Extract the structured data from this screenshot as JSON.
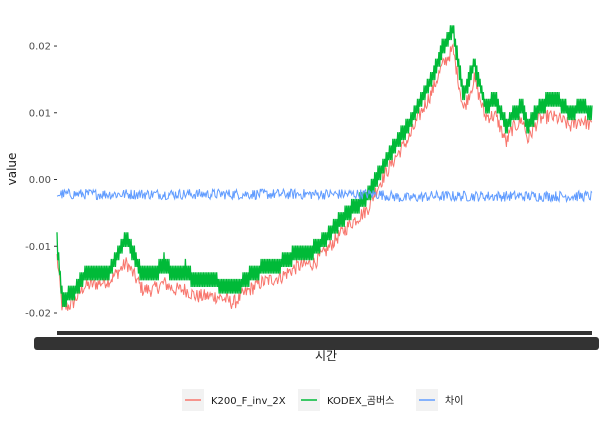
{
  "chart_data": {
    "type": "line",
    "xlabel": "시간",
    "ylabel": "value",
    "yticks": [
      -0.02,
      -0.01,
      0.0,
      0.01,
      0.02
    ],
    "ytick_labels": [
      "-0.02",
      "-0.01",
      "0.00",
      "0.01",
      "0.02"
    ],
    "ylim": [
      -0.0215,
      0.0245
    ],
    "x_tick_labels_overplotted": true,
    "grid": false,
    "legend_position": "bottom",
    "series": [
      {
        "name": "K200_F_inv_2X",
        "color": "#F8766D",
        "x": [
          0,
          0.01,
          0.03,
          0.05,
          0.08,
          0.1,
          0.13,
          0.16,
          0.18,
          0.2,
          0.22,
          0.24,
          0.26,
          0.3,
          0.33,
          0.36,
          0.38,
          0.4,
          0.42,
          0.45,
          0.48,
          0.5,
          0.52,
          0.55,
          0.58,
          0.6,
          0.63,
          0.66,
          0.68,
          0.7,
          0.72,
          0.74,
          0.76,
          0.78,
          0.8,
          0.82,
          0.84,
          0.85,
          0.87,
          0.88,
          0.9,
          0.92,
          0.94,
          0.96,
          0.98,
          1.0
        ],
        "y": [
          -0.0115,
          -0.0195,
          -0.0185,
          -0.016,
          -0.0155,
          -0.015,
          -0.0125,
          -0.0165,
          -0.0165,
          -0.0155,
          -0.0165,
          -0.0165,
          -0.0175,
          -0.0175,
          -0.0185,
          -0.0165,
          -0.0155,
          -0.015,
          -0.0145,
          -0.013,
          -0.0125,
          -0.011,
          -0.009,
          -0.0065,
          -0.0045,
          -0.001,
          0.003,
          0.0065,
          0.01,
          0.013,
          0.017,
          0.0195,
          0.0105,
          0.015,
          0.0095,
          0.0095,
          0.0055,
          0.0075,
          0.009,
          0.006,
          0.009,
          0.0095,
          0.009,
          0.008,
          0.009,
          0.008
        ]
      },
      {
        "name": "KODEX_곰버스",
        "color": "#00BA38",
        "x": [
          0,
          0.01,
          0.03,
          0.05,
          0.08,
          0.1,
          0.13,
          0.16,
          0.18,
          0.2,
          0.22,
          0.24,
          0.26,
          0.3,
          0.33,
          0.36,
          0.38,
          0.4,
          0.42,
          0.45,
          0.48,
          0.5,
          0.52,
          0.55,
          0.58,
          0.6,
          0.63,
          0.66,
          0.68,
          0.7,
          0.72,
          0.74,
          0.76,
          0.78,
          0.8,
          0.82,
          0.84,
          0.85,
          0.87,
          0.88,
          0.9,
          0.92,
          0.94,
          0.96,
          0.98,
          1.0
        ],
        "y": [
          -0.0095,
          -0.018,
          -0.017,
          -0.0145,
          -0.014,
          -0.0135,
          -0.0085,
          -0.0145,
          -0.0145,
          -0.0125,
          -0.0145,
          -0.0135,
          -0.0155,
          -0.0155,
          -0.0165,
          -0.0145,
          -0.0135,
          -0.013,
          -0.0125,
          -0.011,
          -0.0105,
          -0.009,
          -0.007,
          -0.0045,
          -0.0025,
          0.0005,
          0.005,
          0.0085,
          0.012,
          0.015,
          0.0195,
          0.0225,
          0.0125,
          0.0175,
          0.011,
          0.012,
          0.008,
          0.0095,
          0.011,
          0.008,
          0.0105,
          0.012,
          0.0115,
          0.01,
          0.011,
          0.01
        ]
      },
      {
        "name": "차이",
        "color": "#619CFF",
        "x": [
          0,
          0.5,
          0.6,
          0.65,
          0.7,
          1.0
        ],
        "y": [
          -0.0022,
          -0.0022,
          -0.0022,
          -0.0028,
          -0.0025,
          -0.0025
        ]
      }
    ]
  }
}
